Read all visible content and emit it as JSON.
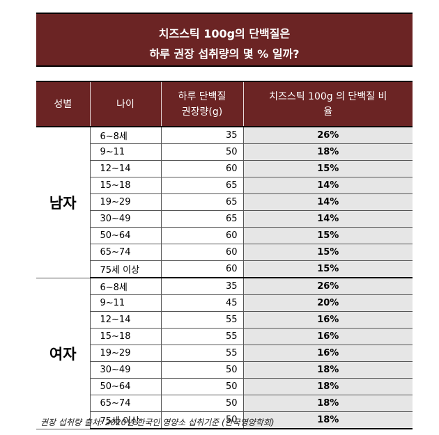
{
  "title": {
    "line1": "치즈스틱 100g의 단백질은",
    "line2": "하루 권장 섭취량의 몇 % 일까?"
  },
  "table": {
    "headers": {
      "gender": "성별",
      "age": "나이",
      "required_line1": "하루 단백질",
      "required_line2": "권장량(g)",
      "ratio_line1": "치즈스틱 100g 의 단백질 비",
      "ratio_line2": "율"
    },
    "groups": [
      {
        "gender": "남자",
        "rows": [
          {
            "age": "6~8세",
            "required": "35",
            "ratio": "26%"
          },
          {
            "age": "9~11",
            "required": "50",
            "ratio": "18%"
          },
          {
            "age": "12~14",
            "required": "60",
            "ratio": "15%"
          },
          {
            "age": "15~18",
            "required": "65",
            "ratio": "14%"
          },
          {
            "age": "19~29",
            "required": "65",
            "ratio": "14%"
          },
          {
            "age": "30~49",
            "required": "65",
            "ratio": "14%"
          },
          {
            "age": "50~64",
            "required": "60",
            "ratio": "15%"
          },
          {
            "age": "65~74",
            "required": "60",
            "ratio": "15%"
          },
          {
            "age": "75세 이상",
            "required": "60",
            "ratio": "15%"
          }
        ]
      },
      {
        "gender": "여자",
        "rows": [
          {
            "age": "6~8세",
            "required": "35",
            "ratio": "26%"
          },
          {
            "age": "9~11",
            "required": "45",
            "ratio": "20%"
          },
          {
            "age": "12~14",
            "required": "55",
            "ratio": "16%"
          },
          {
            "age": "15~18",
            "required": "55",
            "ratio": "16%"
          },
          {
            "age": "19~29",
            "required": "55",
            "ratio": "16%"
          },
          {
            "age": "30~49",
            "required": "50",
            "ratio": "18%"
          },
          {
            "age": "50~64",
            "required": "50",
            "ratio": "18%"
          },
          {
            "age": "65~74",
            "required": "50",
            "ratio": "18%"
          },
          {
            "age": "75세 이상",
            "required": "50",
            "ratio": "18%"
          }
        ]
      }
    ]
  },
  "source": "권장 섭취량 출처: 2020년 한국인 영양소 섭취기준 (한국영양학회)",
  "colors": {
    "header_bg": "#6b2424",
    "percent_bg": "#e6e6e6"
  }
}
